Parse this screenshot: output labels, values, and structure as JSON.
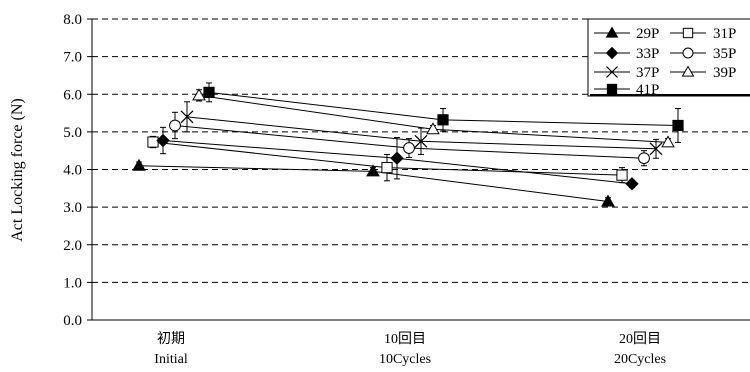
{
  "chart_data": {
    "type": "line",
    "ylabel": "Act  Locking force (N)",
    "ylim": [
      0,
      8
    ],
    "yticks": [
      "0.0",
      "1.0",
      "2.0",
      "3.0",
      "4.0",
      "5.0",
      "6.0",
      "7.0",
      "8.0"
    ],
    "grid": true,
    "legend_position": "top-right",
    "categories": [
      {
        "line1": "初期",
        "line2": "Initial"
      },
      {
        "line1": "10回目",
        "line2": "10Cycles"
      },
      {
        "line1": "20回目",
        "line2": "20Cycles"
      }
    ],
    "series": [
      {
        "name": "29P",
        "marker": "triangle-filled",
        "values": [
          4.1,
          3.95,
          3.15
        ],
        "errors": [
          0.1,
          0.1,
          0.1
        ]
      },
      {
        "name": "31P",
        "marker": "square-open",
        "values": [
          4.73,
          4.05,
          3.85
        ],
        "errors": [
          0.15,
          0.35,
          0.2
        ]
      },
      {
        "name": "33P",
        "marker": "diamond-filled",
        "values": [
          4.77,
          4.3,
          3.62
        ],
        "errors": [
          0.35,
          0.55,
          0.1
        ]
      },
      {
        "name": "35P",
        "marker": "circle-open",
        "values": [
          5.17,
          4.57,
          4.3
        ],
        "errors": [
          0.35,
          0.25,
          0.2
        ]
      },
      {
        "name": "37P",
        "marker": "cross",
        "values": [
          5.4,
          4.75,
          4.55
        ],
        "errors": [
          0.4,
          0.35,
          0.25
        ]
      },
      {
        "name": "39P",
        "marker": "triangle-open",
        "values": [
          5.97,
          5.07,
          4.72
        ],
        "errors": [
          0.15,
          0.1,
          0.1
        ]
      },
      {
        "name": "41P",
        "marker": "square-filled",
        "values": [
          6.05,
          5.32,
          5.17
        ],
        "errors": [
          0.25,
          0.3,
          0.45
        ]
      }
    ]
  }
}
